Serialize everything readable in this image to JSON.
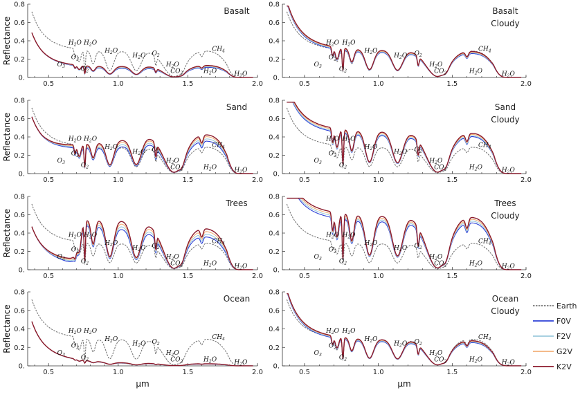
{
  "figure": {
    "y_axis_label": "Reflectance",
    "x_axis_label": "μm",
    "x_ticks": [
      "0.5",
      "1.0",
      "1.5",
      "2.0"
    ],
    "y_ticks": [
      "0.",
      "0.2",
      "0.4",
      "0.6",
      "0.8"
    ]
  },
  "legend": [
    {
      "name": "Earth",
      "color": "#777777",
      "dashed": true
    },
    {
      "name": "F0V",
      "color": "#2b3fd6",
      "dashed": false
    },
    {
      "name": "F2V",
      "color": "#9cc9dd",
      "dashed": false
    },
    {
      "name": "G2V",
      "color": "#f2b07a",
      "dashed": false
    },
    {
      "name": "K2V",
      "color": "#8b1a2b",
      "dashed": false
    }
  ],
  "annotation_labels": {
    "h2o": {
      "base": "H",
      "sub": "2",
      "tail": "O"
    },
    "o2": {
      "base": "O",
      "sub": "2",
      "tail": ""
    },
    "o3": {
      "base": "O",
      "sub": "3",
      "tail": ""
    },
    "co2": {
      "base": "CO",
      "sub": "2",
      "tail": ""
    },
    "ch4": {
      "base": "CH",
      "sub": "4",
      "tail": ""
    }
  },
  "chart_data": [
    {
      "type": "line",
      "title": "Basalt",
      "surface": "basalt",
      "cloudy": false,
      "xlim": [
        0.35,
        2.0
      ],
      "ylim": [
        0,
        0.8
      ],
      "level": 0.15,
      "series": [
        {
          "name": "Earth"
        },
        {
          "name": "F0V",
          "offset": -0.015
        },
        {
          "name": "F2V",
          "offset": -0.008
        },
        {
          "name": "G2V",
          "offset": 0.0
        },
        {
          "name": "K2V",
          "offset": 0.005
        }
      ]
    },
    {
      "type": "line",
      "title": "Basalt Cloudy",
      "surface": "basalt",
      "cloudy": true,
      "xlim": [
        0.35,
        2.0
      ],
      "ylim": [
        0,
        0.8
      ],
      "level": 0.28,
      "series": [
        {
          "name": "Earth"
        },
        {
          "name": "F0V",
          "offset": -0.015
        },
        {
          "name": "F2V",
          "offset": -0.008
        },
        {
          "name": "G2V",
          "offset": 0.0
        },
        {
          "name": "K2V",
          "offset": 0.008
        }
      ]
    },
    {
      "type": "line",
      "title": "Sand",
      "surface": "sand",
      "cloudy": false,
      "xlim": [
        0.35,
        2.0
      ],
      "ylim": [
        0,
        0.8
      ],
      "level": 0.42,
      "series": [
        {
          "name": "Earth"
        },
        {
          "name": "F0V",
          "offset": -0.06
        },
        {
          "name": "F2V",
          "offset": -0.035
        },
        {
          "name": "G2V",
          "offset": -0.01
        },
        {
          "name": "K2V",
          "offset": 0.01
        }
      ]
    },
    {
      "type": "line",
      "title": "Sand Cloudy",
      "surface": "sand",
      "cloudy": true,
      "xlim": [
        0.35,
        2.0
      ],
      "ylim": [
        0,
        0.8
      ],
      "level": 0.44,
      "series": [
        {
          "name": "Earth"
        },
        {
          "name": "F0V",
          "offset": -0.03
        },
        {
          "name": "F2V",
          "offset": -0.02
        },
        {
          "name": "G2V",
          "offset": -0.005
        },
        {
          "name": "K2V",
          "offset": 0.008
        }
      ]
    },
    {
      "type": "line",
      "title": "Trees",
      "surface": "trees",
      "cloudy": false,
      "xlim": [
        0.35,
        2.0
      ],
      "ylim": [
        0,
        0.8
      ],
      "level": 0.55,
      "series": [
        {
          "name": "Earth"
        },
        {
          "name": "F0V",
          "offset": -0.08
        },
        {
          "name": "F2V",
          "offset": -0.05
        },
        {
          "name": "G2V",
          "offset": -0.02
        },
        {
          "name": "K2V",
          "offset": 0.01
        }
      ]
    },
    {
      "type": "line",
      "title": "Trees Cloudy",
      "surface": "trees",
      "cloudy": true,
      "xlim": [
        0.35,
        2.0
      ],
      "ylim": [
        0,
        0.8
      ],
      "level": 0.57,
      "series": [
        {
          "name": "Earth"
        },
        {
          "name": "F0V",
          "offset": -0.05
        },
        {
          "name": "F2V",
          "offset": -0.03
        },
        {
          "name": "G2V",
          "offset": -0.01
        },
        {
          "name": "K2V",
          "offset": 0.01
        }
      ]
    },
    {
      "type": "line",
      "title": "Ocean",
      "surface": "ocean",
      "cloudy": false,
      "xlim": [
        0.35,
        2.0
      ],
      "ylim": [
        0,
        0.8
      ],
      "level": 0.02,
      "series": [
        {
          "name": "Earth"
        },
        {
          "name": "F0V",
          "offset": -0.003
        },
        {
          "name": "F2V",
          "offset": -0.002
        },
        {
          "name": "G2V",
          "offset": 0.0
        },
        {
          "name": "K2V",
          "offset": 0.002
        }
      ]
    },
    {
      "type": "line",
      "title": "Ocean Cloudy",
      "surface": "ocean",
      "cloudy": true,
      "xlim": [
        0.35,
        2.0
      ],
      "ylim": [
        0,
        0.8
      ],
      "level": 0.27,
      "series": [
        {
          "name": "Earth"
        },
        {
          "name": "F0V",
          "offset": -0.015
        },
        {
          "name": "F2V",
          "offset": -0.008
        },
        {
          "name": "G2V",
          "offset": 0.0
        },
        {
          "name": "K2V",
          "offset": 0.006
        }
      ]
    }
  ]
}
